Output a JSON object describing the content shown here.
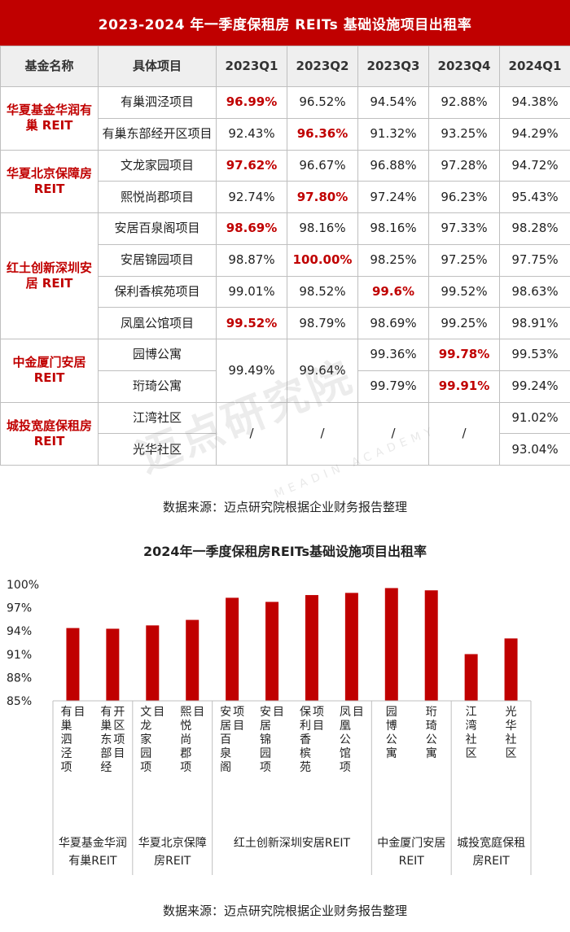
{
  "table": {
    "title": "2023-2024 年一季度保租房 REITs 基础设施项目出租率",
    "headers": [
      "基金名称",
      "具体项目",
      "2023Q1",
      "2023Q2",
      "2023Q3",
      "2023Q4",
      "2024Q1"
    ],
    "funds": [
      {
        "name": "华夏基金华润有巢 REIT",
        "rows": [
          {
            "project": "有巢泗泾项目",
            "q1": "96.99%",
            "q2": "96.52%",
            "q3": "94.54%",
            "q4": "92.88%",
            "q5": "94.38%"
          },
          {
            "project": "有巢东部经开区项目",
            "q1": "92.43%",
            "q2": "96.36%",
            "q3": "91.32%",
            "q4": "93.25%",
            "q5": "94.29%"
          }
        ]
      },
      {
        "name": "华夏北京保障房 REIT",
        "rows": [
          {
            "project": "文龙家园项目",
            "q1": "97.62%",
            "q2": "96.67%",
            "q3": "96.88%",
            "q4": "97.28%",
            "q5": "94.72%"
          },
          {
            "project": "熙悦尚郡项目",
            "q1": "92.74%",
            "q2": "97.80%",
            "q3": "97.24%",
            "q4": "96.23%",
            "q5": "95.43%"
          }
        ]
      },
      {
        "name": "红土创新深圳安居 REIT",
        "rows": [
          {
            "project": "安居百泉阁项目",
            "q1": "98.69%",
            "q2": "98.16%",
            "q3": "98.16%",
            "q4": "97.33%",
            "q5": "98.28%"
          },
          {
            "project": "安居锦园项目",
            "q1": "98.87%",
            "q2": "100.00%",
            "q3": "98.25%",
            "q4": "97.25%",
            "q5": "97.75%"
          },
          {
            "project": "保利香槟苑项目",
            "q1": "99.01%",
            "q2": "98.52%",
            "q3": "99.6%",
            "q4": "99.52%",
            "q5": "98.63%"
          },
          {
            "project": "凤凰公馆项目",
            "q1": "99.52%",
            "q2": "98.79%",
            "q3": "98.69%",
            "q4": "99.25%",
            "q5": "98.91%"
          }
        ]
      },
      {
        "name": "中金厦门安居 REIT",
        "merged_q1": "99.49%",
        "merged_q2": "99.64%",
        "rows": [
          {
            "project": "园博公寓",
            "q3": "99.36%",
            "q4": "99.78%",
            "q5": "99.53%"
          },
          {
            "project": "珩琦公寓",
            "q3": "99.79%",
            "q4": "99.91%",
            "q5": "99.24%"
          }
        ]
      },
      {
        "name": "城投宽庭保租房 REIT",
        "merged_q1": "/",
        "merged_q2": "/",
        "merged_q3": "/",
        "merged_q4": "/",
        "rows": [
          {
            "project": "江湾社区",
            "q5": "91.02%"
          },
          {
            "project": "光华社区",
            "q5": "93.04%"
          }
        ]
      }
    ]
  },
  "source_text": "数据来源：迈点研究院根据企业财务报告整理",
  "watermark_text": "迈点研究院",
  "watermark_sub": "MEADIN ACADEMY",
  "colors": {
    "accent": "#c00000",
    "header_bg": "#efefef",
    "grid": "#bfbfbf"
  },
  "chart_data": {
    "type": "bar",
    "title": "2024年一季度保租房REITs基础设施项目出租率",
    "categories": [
      "有巢泗泾项目",
      "有巢东部经开区项目",
      "文龙家园项目",
      "熙悦尚郡项目",
      "安居百泉阁项目",
      "安居锦园项目",
      "保利香槟苑项目",
      "凤凰公馆项目",
      "园博公寓",
      "珩琦公寓",
      "江湾社区",
      "光华社区"
    ],
    "values": [
      94.38,
      94.29,
      94.72,
      95.43,
      98.28,
      97.75,
      98.63,
      98.91,
      99.53,
      99.24,
      91.02,
      93.04
    ],
    "groups": [
      {
        "label": "华夏基金华润有巢REIT",
        "count": 2
      },
      {
        "label": "华夏北京保障房REIT",
        "count": 2
      },
      {
        "label": "红土创新深圳安居REIT",
        "count": 4
      },
      {
        "label": "中金厦门安居REIT",
        "count": 2
      },
      {
        "label": "城投宽庭保租房REIT",
        "count": 2
      }
    ],
    "ylim": [
      85,
      100
    ],
    "yticks": [
      "85%",
      "88%",
      "91%",
      "94%",
      "97%",
      "100%"
    ],
    "ytick_values": [
      85,
      88,
      91,
      94,
      97,
      100
    ],
    "grid": false,
    "bar_color": "#c00000"
  }
}
